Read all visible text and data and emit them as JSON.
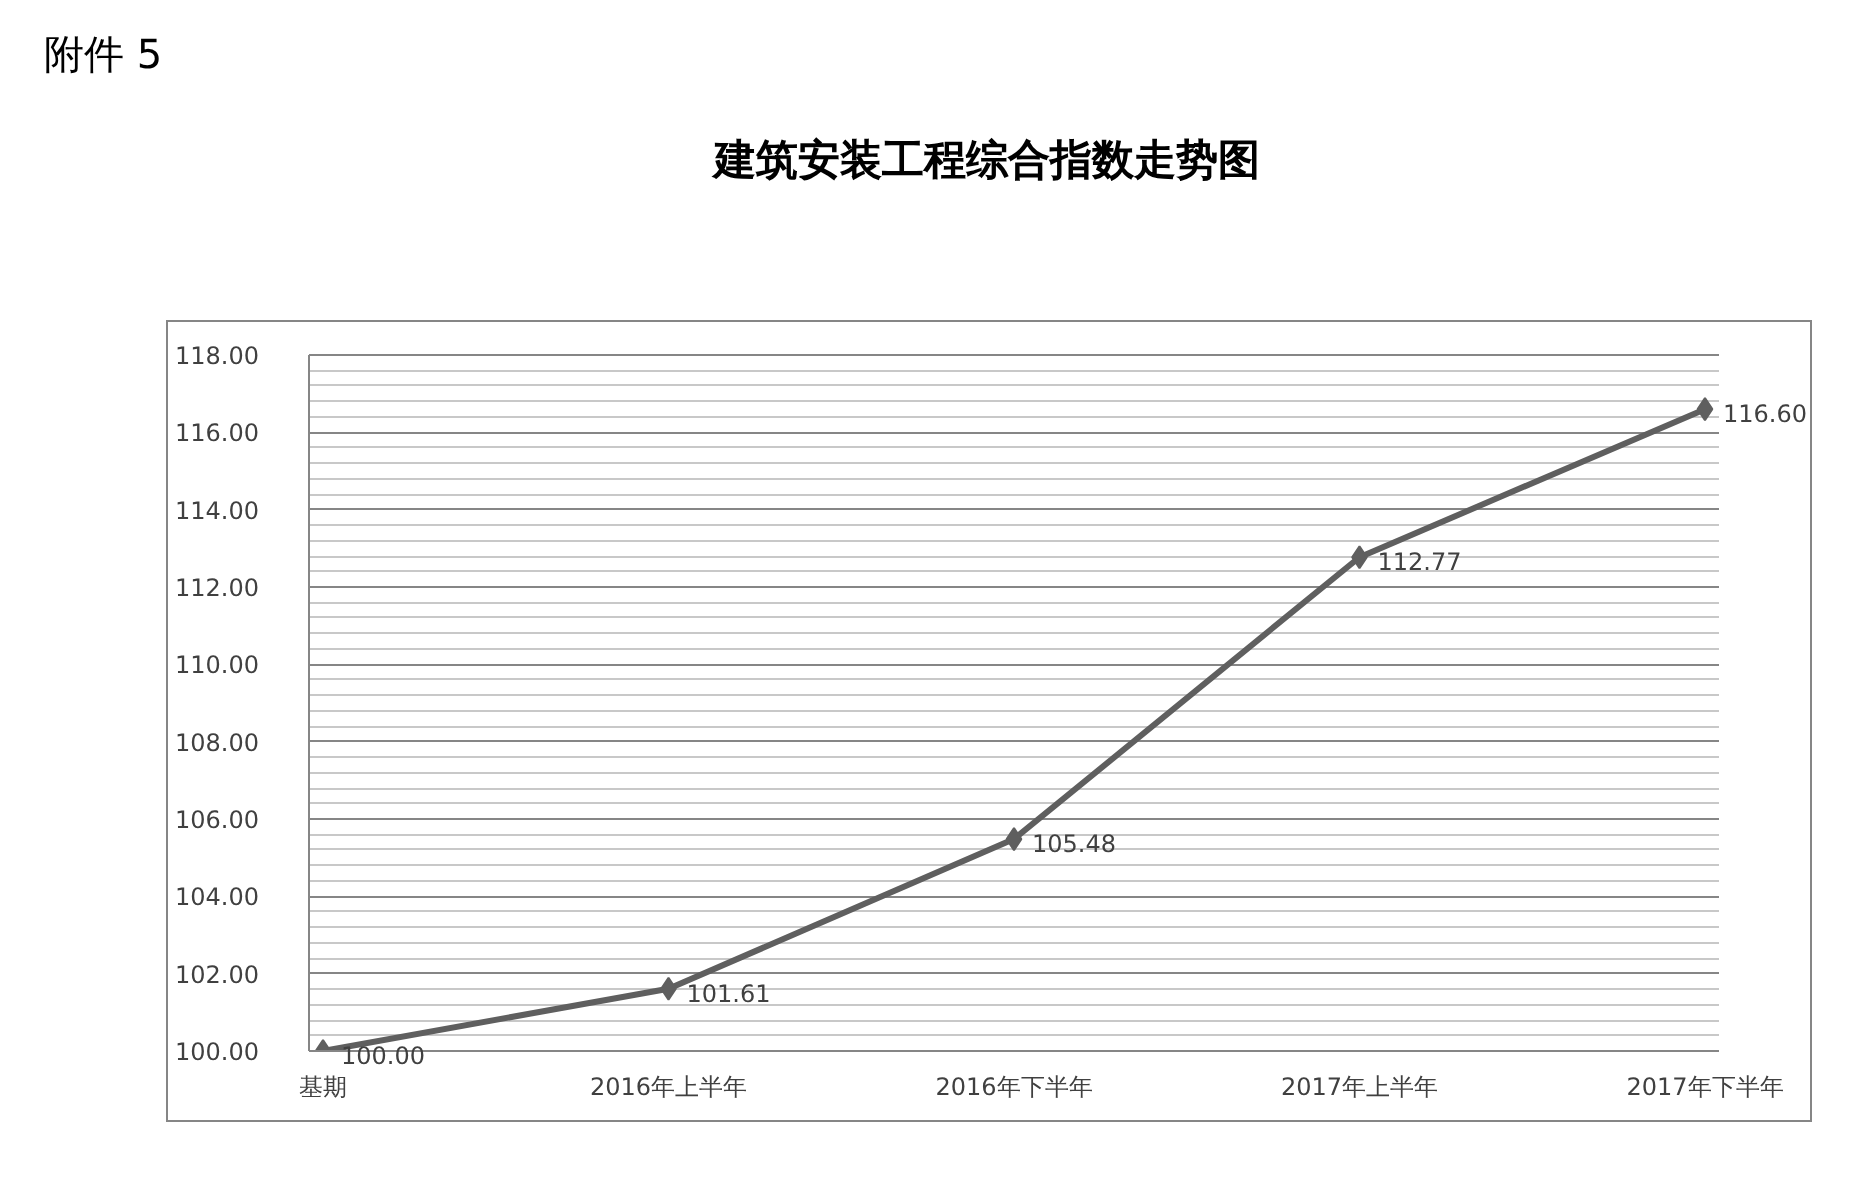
{
  "chart_data": {
    "type": "line",
    "title": "建筑安装工程综合指数走势图",
    "annotations": [
      "附件 5"
    ],
    "categories": [
      "基期",
      "2016年上半年",
      "2016年下半年",
      "2017年上半年",
      "2017年下半年"
    ],
    "series": [
      {
        "color": "#5f5f5f",
        "values": [
          100.0,
          101.61,
          105.48,
          112.77,
          116.6
        ],
        "value_labels": [
          "100.00",
          "101.61",
          "105.48",
          "112.77",
          "116.60"
        ]
      }
    ],
    "ylim": [
      100,
      118
    ],
    "yticks": [
      {
        "value": 100,
        "label": "100.00"
      },
      {
        "value": 100.4,
        "label": null
      },
      {
        "value": 100.8,
        "label": null
      },
      {
        "value": 101.2,
        "label": null
      },
      {
        "value": 101.6,
        "label": null
      },
      {
        "value": 102,
        "label": "102.00"
      },
      {
        "value": 102.4,
        "label": null
      },
      {
        "value": 102.8,
        "label": null
      },
      {
        "value": 103.2,
        "label": null
      },
      {
        "value": 103.6,
        "label": null
      },
      {
        "value": 104,
        "label": "104.00"
      },
      {
        "value": 104.4,
        "label": null
      },
      {
        "value": 104.8,
        "label": null
      },
      {
        "value": 105.2,
        "label": null
      },
      {
        "value": 105.6,
        "label": null
      },
      {
        "value": 106,
        "label": "106.00"
      },
      {
        "value": 106.4,
        "label": null
      },
      {
        "value": 106.8,
        "label": null
      },
      {
        "value": 107.2,
        "label": null
      },
      {
        "value": 107.6,
        "label": null
      },
      {
        "value": 108,
        "label": "108.00"
      },
      {
        "value": 108.4,
        "label": null
      },
      {
        "value": 108.8,
        "label": null
      },
      {
        "value": 109.2,
        "label": null
      },
      {
        "value": 109.6,
        "label": null
      },
      {
        "value": 110,
        "label": "110.00"
      },
      {
        "value": 110.4,
        "label": null
      },
      {
        "value": 110.8,
        "label": null
      },
      {
        "value": 111.2,
        "label": null
      },
      {
        "value": 111.6,
        "label": null
      },
      {
        "value": 112,
        "label": "112.00"
      },
      {
        "value": 112.4,
        "label": null
      },
      {
        "value": 112.8,
        "label": null
      },
      {
        "value": 113.2,
        "label": null
      },
      {
        "value": 113.6,
        "label": null
      },
      {
        "value": 114,
        "label": "114.00"
      },
      {
        "value": 114.4,
        "label": null
      },
      {
        "value": 114.8,
        "label": null
      },
      {
        "value": 115.2,
        "label": null
      },
      {
        "value": 115.6,
        "label": null
      },
      {
        "value": 116,
        "label": "116.00"
      },
      {
        "value": 116.4,
        "label": null
      },
      {
        "value": 116.8,
        "label": null
      },
      {
        "value": 117.2,
        "label": null
      },
      {
        "value": 117.6,
        "label": null
      },
      {
        "value": 118,
        "label": "118.00"
      }
    ],
    "grid": "y",
    "marker": "diamond",
    "line_style": "solid"
  }
}
